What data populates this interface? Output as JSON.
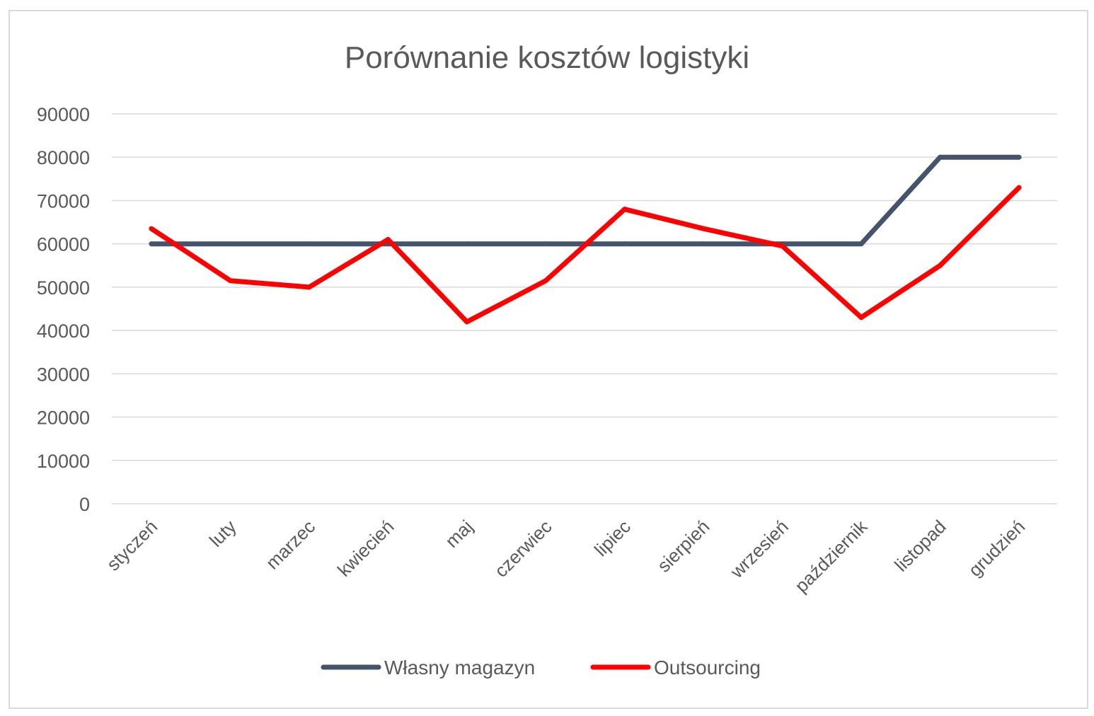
{
  "chart_data": {
    "type": "line",
    "title": "Porównanie kosztów logistyki",
    "xlabel": "",
    "ylabel": "",
    "ylim": [
      0,
      90000
    ],
    "yticks": [
      0,
      10000,
      20000,
      30000,
      40000,
      50000,
      60000,
      70000,
      80000,
      90000
    ],
    "grid": true,
    "legend_position": "bottom",
    "categories": [
      "styczeń",
      "luty",
      "marzec",
      "kwiecień",
      "maj",
      "czerwiec",
      "lipiec",
      "sierpień",
      "wrzesień",
      "październik",
      "listopad",
      "grudzień"
    ],
    "series": [
      {
        "name": "Własny magazyn",
        "color": "#44546a",
        "values": [
          60000,
          60000,
          60000,
          60000,
          60000,
          60000,
          60000,
          60000,
          60000,
          60000,
          80000,
          80000
        ]
      },
      {
        "name": "Outsourcing",
        "color": "#ff0000",
        "values": [
          63500,
          51500,
          50000,
          61000,
          42000,
          51500,
          68000,
          63500,
          59500,
          43000,
          55000,
          73000
        ]
      }
    ]
  }
}
